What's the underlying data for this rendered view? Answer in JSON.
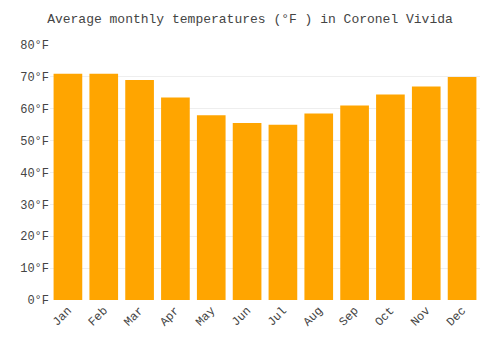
{
  "chart_data": {
    "type": "bar",
    "title": "Average monthly temperatures (°F ) in Coronel Vivida",
    "categories": [
      "Jan",
      "Feb",
      "Mar",
      "Apr",
      "May",
      "Jun",
      "Jul",
      "Aug",
      "Sep",
      "Oct",
      "Nov",
      "Dec"
    ],
    "values": [
      71,
      71,
      69,
      63.5,
      58,
      55.5,
      55,
      58.5,
      61,
      64.5,
      67,
      70
    ],
    "color": "#FFA500",
    "ylim": [
      0,
      80
    ],
    "yticks": [
      {
        "value": 0,
        "label": "0°F"
      },
      {
        "value": 10,
        "label": "10°F"
      },
      {
        "value": 20,
        "label": "20°F"
      },
      {
        "value": 30,
        "label": "30°F"
      },
      {
        "value": 40,
        "label": "40°F"
      },
      {
        "value": 50,
        "label": "50°F"
      },
      {
        "value": 60,
        "label": "60°F"
      },
      {
        "value": 70,
        "label": "70°F"
      },
      {
        "value": 80,
        "label": "80°F"
      }
    ],
    "grid": true
  }
}
